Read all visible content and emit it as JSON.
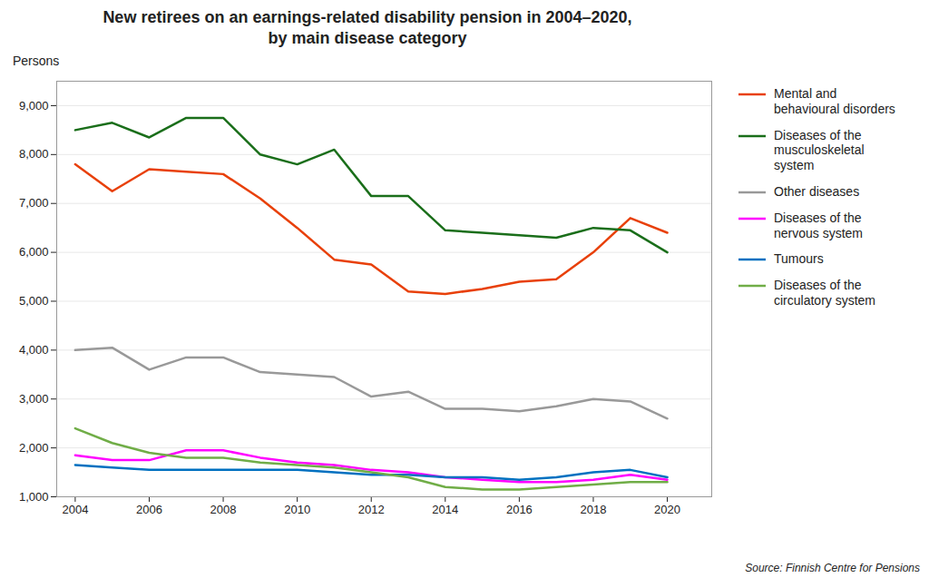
{
  "chart_data": {
    "type": "line",
    "title": "New retirees on an earnings-related disability pension in 2004–2020,\nby main disease category",
    "ylabel": "Persons",
    "annotations": [
      "Source: Finnish Centre for Pensions"
    ],
    "x": [
      2004,
      2005,
      2006,
      2007,
      2008,
      2009,
      2010,
      2011,
      2012,
      2013,
      2014,
      2015,
      2016,
      2017,
      2018,
      2019,
      2020
    ],
    "series": [
      {
        "name": "Mental and\nbehavioural disorders",
        "color": "#e8400a",
        "values": [
          7800,
          7250,
          7700,
          7650,
          7600,
          7100,
          6500,
          5850,
          5750,
          5200,
          5150,
          5250,
          5400,
          5450,
          6000,
          6700,
          6400
        ]
      },
      {
        "name": "Diseases of the\nmusculoskeletal\nsystem",
        "color": "#1a6e1a",
        "values": [
          8500,
          8650,
          8350,
          8750,
          8750,
          8000,
          7800,
          8100,
          7150,
          7150,
          6450,
          6400,
          6350,
          6300,
          6500,
          6450,
          6000
        ]
      },
      {
        "name": "Other diseases",
        "color": "#999999",
        "values": [
          4000,
          4050,
          3600,
          3850,
          3850,
          3550,
          3500,
          3450,
          3050,
          3150,
          2800,
          2800,
          2750,
          2850,
          3000,
          2950,
          2600
        ]
      },
      {
        "name": "Diseases of the\nnervous system",
        "color": "#ff00ff",
        "values": [
          1850,
          1750,
          1750,
          1950,
          1950,
          1800,
          1700,
          1650,
          1550,
          1500,
          1400,
          1350,
          1300,
          1300,
          1350,
          1450,
          1350
        ]
      },
      {
        "name": "Tumours",
        "color": "#0070c0",
        "values": [
          1650,
          1600,
          1550,
          1550,
          1550,
          1550,
          1550,
          1500,
          1450,
          1450,
          1400,
          1400,
          1350,
          1400,
          1500,
          1550,
          1400
        ]
      },
      {
        "name": "Diseases of the\ncirculatory system",
        "color": "#70ad47",
        "values": [
          2400,
          2100,
          1900,
          1800,
          1800,
          1700,
          1650,
          1600,
          1500,
          1400,
          1200,
          1150,
          1150,
          1200,
          1250,
          1300,
          1300
        ]
      }
    ],
    "xlim": [
      2003.5,
      2021.2
    ],
    "xticks": [
      2004,
      2006,
      2008,
      2010,
      2012,
      2014,
      2016,
      2018,
      2020
    ],
    "ylim": [
      1000,
      9500
    ],
    "yticks": [
      {
        "value": 1000,
        "label": "1,000"
      },
      {
        "value": 2000,
        "label": "2,000"
      },
      {
        "value": 3000,
        "label": "3,000"
      },
      {
        "value": 4000,
        "label": "4,000"
      },
      {
        "value": 5000,
        "label": "5,000"
      },
      {
        "value": 6000,
        "label": "6,000"
      },
      {
        "value": 7000,
        "label": "7,000"
      },
      {
        "value": 8000,
        "label": "8,000"
      },
      {
        "value": 9000,
        "label": "9,000"
      }
    ],
    "grid": "y",
    "legend": "right"
  }
}
